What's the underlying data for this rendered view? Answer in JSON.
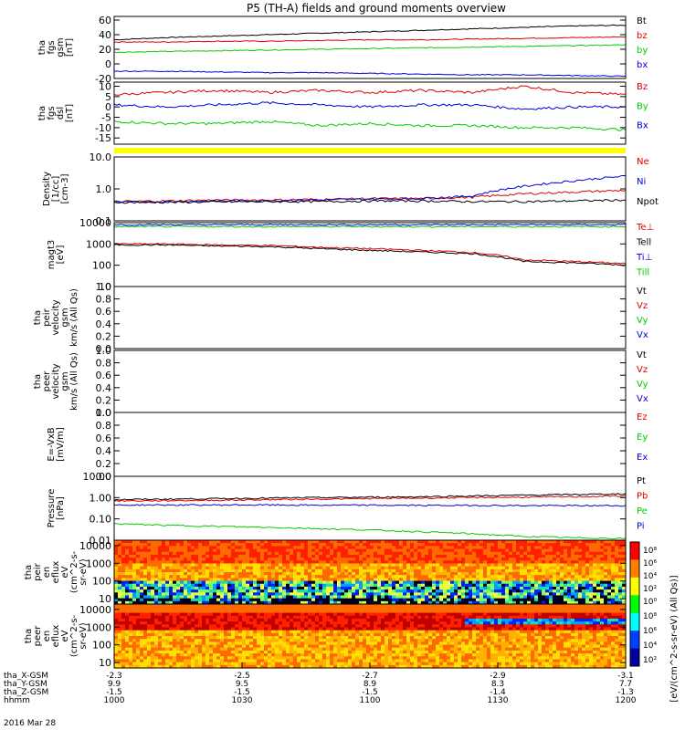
{
  "title": "P5 (TH-A) fields and ground moments overview",
  "colors": {
    "black": "#000000",
    "red": "#dd0000",
    "green": "#00cc00",
    "blue": "#0000dd",
    "yellow": "#ffff00"
  },
  "chart_data": [
    {
      "type": "line",
      "id": "fgs_gsm",
      "ylabel": [
        "tha",
        "fgs",
        "gsm",
        "[nT]"
      ],
      "ylim": [
        -20,
        65
      ],
      "yticks": [
        "60",
        "40",
        "20",
        "0",
        "-20"
      ],
      "ytick_values": [
        60,
        40,
        20,
        0,
        -20
      ],
      "log": false,
      "series": [
        {
          "name": "Bt",
          "color": "black",
          "values": [
            33,
            36,
            38,
            40,
            42,
            44,
            46,
            48,
            50,
            52,
            53
          ]
        },
        {
          "name": "bz",
          "color": "red",
          "values": [
            30,
            30,
            31,
            31,
            32,
            33,
            33,
            34,
            35,
            36,
            37
          ]
        },
        {
          "name": "by",
          "color": "green",
          "values": [
            16,
            17,
            18,
            19,
            20,
            21,
            22,
            23,
            24,
            25,
            26
          ]
        },
        {
          "name": "bx",
          "color": "blue",
          "values": [
            -10,
            -10,
            -11,
            -12,
            -12,
            -13,
            -14,
            -15,
            -15,
            -16,
            -17
          ]
        }
      ]
    },
    {
      "type": "line",
      "id": "fgs_dsl",
      "ylabel": [
        "tha",
        "fgs",
        "dsl",
        "[nT]"
      ],
      "ylim": [
        -18,
        12
      ],
      "yticks": [
        "10",
        "5",
        "0",
        "-5",
        "-10",
        "-15"
      ],
      "ytick_values": [
        10,
        5,
        0,
        -5,
        -10,
        -15
      ],
      "log": false,
      "series": [
        {
          "name": "Bz",
          "color": "red",
          "values": [
            6,
            7,
            8,
            7,
            8,
            7,
            8,
            7,
            10,
            7,
            6
          ]
        },
        {
          "name": "By",
          "color": "green",
          "values": [
            -7,
            -8,
            -8,
            -7,
            -9,
            -8,
            -9,
            -9,
            -10,
            -10,
            -11
          ]
        },
        {
          "name": "Bx",
          "color": "blue",
          "values": [
            1,
            0,
            1,
            2,
            1,
            0,
            1,
            1,
            -1,
            0,
            0
          ]
        }
      ]
    },
    {
      "type": "line",
      "id": "density",
      "ylabel": [
        "Density",
        "[1/cc]",
        "[cm-3]"
      ],
      "ylim": [
        0.1,
        10
      ],
      "yticks": [
        "10.0",
        "1.0",
        "0.1"
      ],
      "ytick_values": [
        10,
        1,
        0.1
      ],
      "log": true,
      "series": [
        {
          "name": "Ne",
          "color": "red",
          "values": [
            0.4,
            0.42,
            0.45,
            0.45,
            0.47,
            0.5,
            0.5,
            0.55,
            0.7,
            0.8,
            0.9
          ]
        },
        {
          "name": "Ni",
          "color": "blue",
          "values": [
            0.38,
            0.4,
            0.42,
            0.43,
            0.45,
            0.48,
            0.5,
            0.6,
            1.2,
            1.8,
            2.5
          ]
        },
        {
          "name": "Npot",
          "color": "black",
          "values": [
            0.38,
            0.38,
            0.39,
            0.4,
            0.4,
            0.42,
            0.42,
            0.4,
            0.4,
            0.42,
            0.45
          ]
        }
      ]
    },
    {
      "type": "line",
      "id": "temperature",
      "ylabel": [
        "magt3",
        "[eV]"
      ],
      "ylim": [
        10,
        10000
      ],
      "yticks": [
        "10000",
        "1000",
        "100",
        "10"
      ],
      "ytick_values": [
        10000,
        1000,
        100,
        10
      ],
      "log": true,
      "series": [
        {
          "name": "Te⊥",
          "color": "red",
          "values": [
            1000,
            1000,
            900,
            850,
            700,
            600,
            500,
            400,
            180,
            150,
            120
          ]
        },
        {
          "name": "Tell",
          "color": "black",
          "values": [
            900,
            900,
            800,
            750,
            600,
            500,
            420,
            350,
            150,
            130,
            100
          ]
        },
        {
          "name": "Ti⊥",
          "color": "blue",
          "values": [
            8000,
            8000,
            8000,
            8000,
            8000,
            8000,
            8000,
            8000,
            8000,
            8000,
            8000
          ]
        },
        {
          "name": "Till",
          "color": "green",
          "values": [
            6500,
            6500,
            6500,
            6500,
            6500,
            6500,
            6500,
            6500,
            6500,
            6500,
            6500
          ]
        }
      ]
    },
    {
      "type": "line",
      "id": "peir_velocity",
      "ylabel": [
        "tha",
        "peir",
        "velocity",
        "gsm",
        "km/s (All Qs)"
      ],
      "ylim": [
        0,
        1
      ],
      "yticks": [
        "1.0",
        "0.8",
        "0.6",
        "0.4",
        "0.2",
        "0.0"
      ],
      "ytick_values": [
        1,
        0.8,
        0.6,
        0.4,
        0.2,
        0
      ],
      "log": false,
      "series": [
        {
          "name": "Vt",
          "color": "black",
          "values": []
        },
        {
          "name": "Vz",
          "color": "red",
          "values": []
        },
        {
          "name": "Vy",
          "color": "green",
          "values": []
        },
        {
          "name": "Vx",
          "color": "blue",
          "values": []
        }
      ]
    },
    {
      "type": "line",
      "id": "peer_velocity",
      "ylabel": [
        "tha",
        "peer",
        "velocity",
        "gsm",
        "km/s (All Qs)"
      ],
      "ylim": [
        0,
        1
      ],
      "yticks": [
        "1.0",
        "0.8",
        "0.6",
        "0.4",
        "0.2",
        "0.0"
      ],
      "ytick_values": [
        1,
        0.8,
        0.6,
        0.4,
        0.2,
        0
      ],
      "log": false,
      "series": [
        {
          "name": "Vt",
          "color": "black",
          "values": []
        },
        {
          "name": "Vz",
          "color": "red",
          "values": []
        },
        {
          "name": "Vy",
          "color": "green",
          "values": []
        },
        {
          "name": "Vx",
          "color": "blue",
          "values": []
        }
      ]
    },
    {
      "type": "line",
      "id": "efield",
      "ylabel": [
        "E=-VxB",
        "[mV/m]"
      ],
      "ylim": [
        0,
        1
      ],
      "yticks": [
        "1.0",
        "0.8",
        "0.6",
        "0.4",
        "0.2",
        "0.0"
      ],
      "ytick_values": [
        1,
        0.8,
        0.6,
        0.4,
        0.2,
        0
      ],
      "log": false,
      "series": [
        {
          "name": "Ez",
          "color": "red",
          "values": []
        },
        {
          "name": "Ey",
          "color": "green",
          "values": []
        },
        {
          "name": "Ex",
          "color": "blue",
          "values": []
        }
      ]
    },
    {
      "type": "line",
      "id": "pressure",
      "ylabel": [
        "Pressure",
        "[nPa]"
      ],
      "ylim": [
        0.01,
        10
      ],
      "yticks": [
        "10.00",
        "1.00",
        "0.10",
        "0.01"
      ],
      "ytick_values": [
        10,
        1,
        0.1,
        0.01
      ],
      "log": true,
      "series": [
        {
          "name": "Pt",
          "color": "black",
          "values": [
            0.8,
            0.85,
            0.9,
            0.95,
            1.0,
            1.05,
            1.1,
            1.2,
            1.3,
            1.4,
            1.5
          ]
        },
        {
          "name": "Pb",
          "color": "red",
          "values": [
            0.7,
            0.72,
            0.75,
            0.8,
            0.85,
            0.9,
            0.95,
            1.0,
            1.05,
            1.1,
            1.2
          ]
        },
        {
          "name": "Pe",
          "color": "green",
          "values": [
            0.06,
            0.05,
            0.045,
            0.04,
            0.035,
            0.03,
            0.025,
            0.02,
            0.015,
            0.013,
            0.012
          ]
        },
        {
          "name": "Pi",
          "color": "blue",
          "values": [
            0.45,
            0.45,
            0.45,
            0.45,
            0.44,
            0.44,
            0.43,
            0.43,
            0.42,
            0.42,
            0.42
          ]
        }
      ]
    },
    {
      "type": "heatmap",
      "id": "peir_en",
      "ylabel": [
        "tha",
        "peir",
        "en",
        "eflux",
        "eV",
        "(cm^2-s-",
        "sr-eV)"
      ],
      "yticks": [
        "10000",
        "1000",
        "100",
        "10"
      ],
      "ytick_values": [
        10000,
        1000,
        100,
        10
      ],
      "log": true,
      "ylim": [
        5,
        20000
      ]
    },
    {
      "type": "heatmap",
      "id": "peer_en",
      "ylabel": [
        "tha",
        "peer",
        "en",
        "eflux",
        "eV",
        "(cm^2-s-",
        "sr-eV)"
      ],
      "yticks": [
        "10000",
        "1000",
        "100",
        "10"
      ],
      "ytick_values": [
        10000,
        1000,
        100,
        10
      ],
      "log": true,
      "ylim": [
        5,
        20000
      ]
    }
  ],
  "colorbar": {
    "label": "[eV/(cm^2-s-sr-eV) (All Qs)]",
    "ticks_top": [
      "10⁸",
      "10⁶",
      "10⁴",
      "10²",
      "10⁰"
    ],
    "ticks_bottom": [
      "10⁸",
      "10⁶",
      "10⁴",
      "10²"
    ]
  },
  "xaxis": {
    "rows": [
      {
        "label": "tha_X-GSM",
        "values": [
          "-2.3",
          "-2.5",
          "-2.7",
          "-2.9",
          "-3.1"
        ]
      },
      {
        "label": "tha_Y-GSM",
        "values": [
          "9.9",
          "9.5",
          "8.9",
          "8.3",
          "7.7"
        ]
      },
      {
        "label": "tha_Z-GSM",
        "values": [
          "-1.5",
          "-1.5",
          "-1.5",
          "-1.4",
          "-1.3"
        ]
      },
      {
        "label": "hhmm",
        "values": [
          "1000",
          "1030",
          "1100",
          "1130",
          "1200"
        ]
      }
    ],
    "date": "2016 Mar 28"
  }
}
